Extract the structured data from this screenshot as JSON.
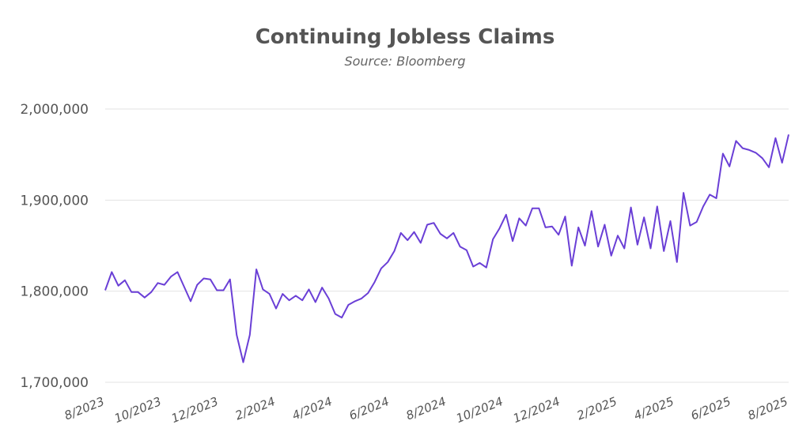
{
  "chart_data": {
    "type": "line",
    "title": "Continuing Jobless Claims",
    "subtitle": "Source: Bloomberg",
    "xlabel": "",
    "ylabel": "",
    "ylim": [
      1700000,
      2000000
    ],
    "y_ticks": [
      "1,700,000",
      "1,800,000",
      "1,900,000",
      "2,000,000"
    ],
    "x_ticks": [
      "8/2023",
      "10/2023",
      "12/2023",
      "2/2024",
      "4/2024",
      "6/2024",
      "8/2024",
      "10/2024",
      "12/2024",
      "2/2025",
      "4/2025",
      "6/2025",
      "8/2025"
    ],
    "grid": true,
    "series_color": "#6a3fd6",
    "series": [
      {
        "values": [
          1801000,
          1821000,
          1806000,
          1812000,
          1799000,
          1799000,
          1793000,
          1799000,
          1809000,
          1807000,
          1816000,
          1821000,
          1805000,
          1789000,
          1807000,
          1814000,
          1813000,
          1801000,
          1801000,
          1813000,
          1752000,
          1722000,
          1752000,
          1824000,
          1802000,
          1797000,
          1781000,
          1797000,
          1790000,
          1795000,
          1790000,
          1802000,
          1788000,
          1804000,
          1792000,
          1775000,
          1771000,
          1785000,
          1789000,
          1792000,
          1798000,
          1810000,
          1825000,
          1832000,
          1844000,
          1864000,
          1856000,
          1865000,
          1853000,
          1873000,
          1875000,
          1863000,
          1858000,
          1864000,
          1849000,
          1845000,
          1827000,
          1831000,
          1826000,
          1857000,
          1869000,
          1884000,
          1855000,
          1880000,
          1872000,
          1891000,
          1891000,
          1870000,
          1871000,
          1862000,
          1882000,
          1828000,
          1870000,
          1850000,
          1888000,
          1849000,
          1873000,
          1839000,
          1861000,
          1847000,
          1892000,
          1851000,
          1881000,
          1847000,
          1893000,
          1844000,
          1877000,
          1832000,
          1908000,
          1872000,
          1876000,
          1893000,
          1906000,
          1902000,
          1951000,
          1937000,
          1965000,
          1957000,
          1955000,
          1952000,
          1946000,
          1936000,
          1968000,
          1941000,
          1972000
        ]
      }
    ]
  }
}
